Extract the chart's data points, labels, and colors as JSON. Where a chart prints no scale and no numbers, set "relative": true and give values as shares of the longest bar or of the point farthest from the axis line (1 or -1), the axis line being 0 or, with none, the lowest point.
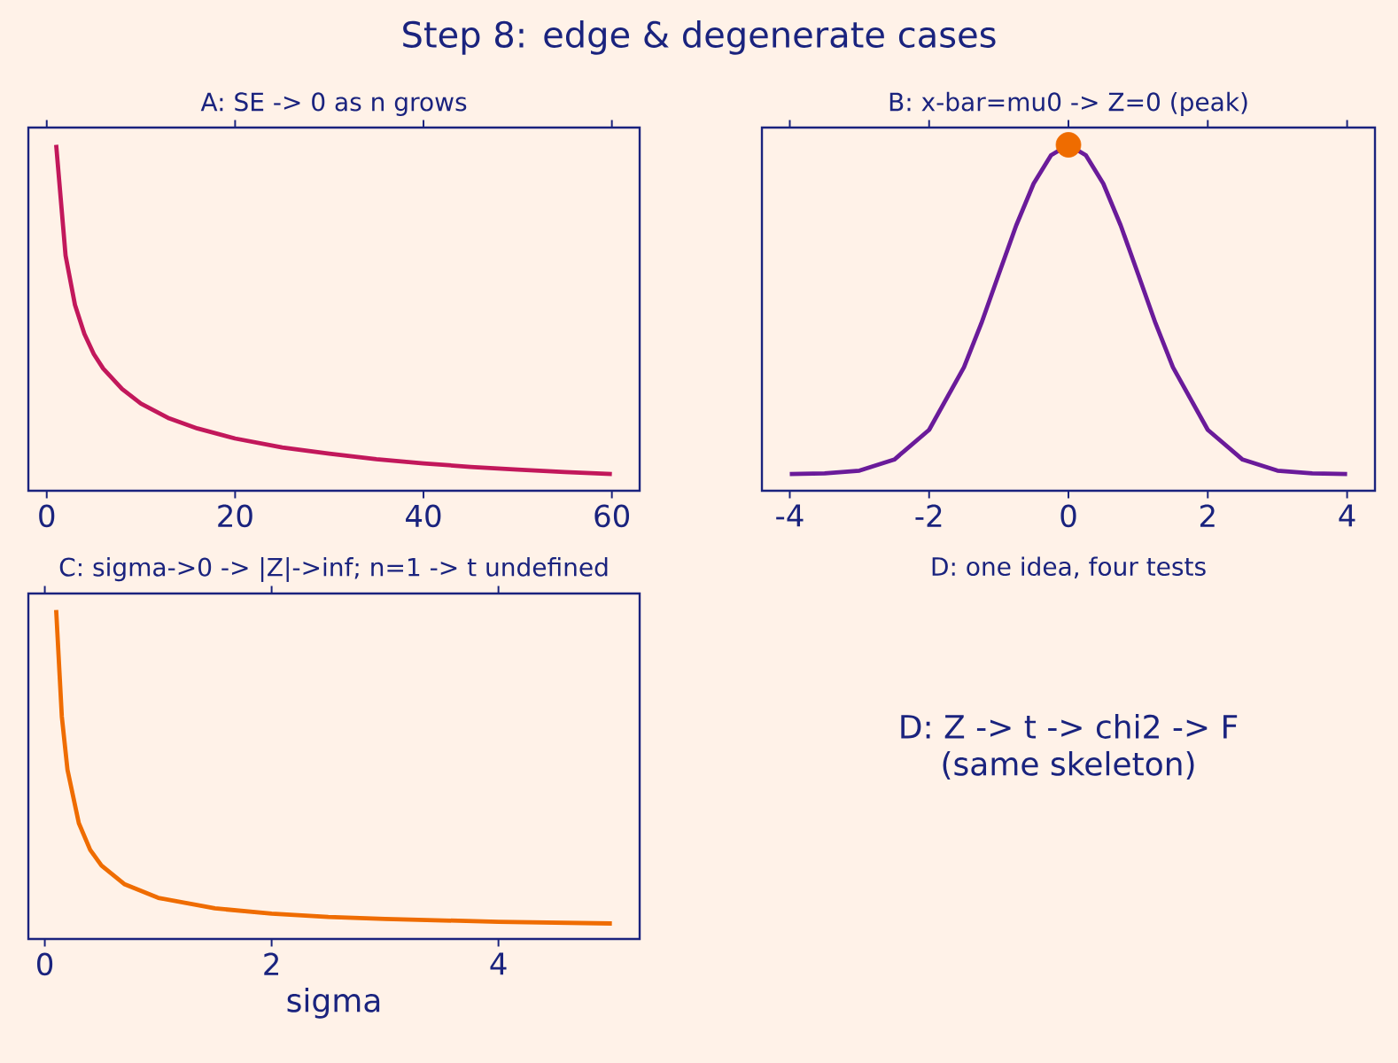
{
  "chart_data": [
    {
      "type": "line",
      "title": "Step 8: edge & degenerate cases",
      "subtitle": "A: SE -> 0 as n grows",
      "relative": true,
      "tick_labels": "x",
      "xlim": [
        -1.95,
        62.95
      ],
      "xticks": [
        0,
        20,
        40,
        60
      ],
      "x": [
        1,
        2,
        3,
        4,
        5,
        6,
        8,
        10,
        13,
        16,
        20,
        25,
        30,
        35,
        40,
        45,
        50,
        55,
        60
      ],
      "series": [
        {
          "color": "#c2185b",
          "values": [
            1,
            0.68,
            0.537,
            0.453,
            0.395,
            0.353,
            0.294,
            0.252,
            0.209,
            0.18,
            0.151,
            0.125,
            0.107,
            0.091,
            0.079,
            0.069,
            0.061,
            0.054,
            0.048
          ]
        }
      ]
    },
    {
      "type": "line",
      "title": "B: x-bar=mu0 -> Z=0 (peak)",
      "relative": true,
      "tick_labels": "x",
      "xlim": [
        -4.4,
        4.4
      ],
      "xticks": [
        -4,
        -2,
        0,
        2,
        4
      ],
      "x": [
        -4,
        -3.5,
        -3,
        -2.5,
        -2,
        -1.5,
        -1.25,
        -1,
        -0.75,
        -0.5,
        -0.25,
        0,
        0.25,
        0.5,
        0.75,
        1,
        1.25,
        1.5,
        2,
        2.5,
        3,
        3.5,
        4
      ],
      "series": [
        {
          "color": "#6a1b9a",
          "values": [
            0.048,
            0.05,
            0.058,
            0.09,
            0.176,
            0.357,
            0.484,
            0.626,
            0.767,
            0.888,
            0.97,
            1,
            0.97,
            0.888,
            0.767,
            0.626,
            0.484,
            0.357,
            0.176,
            0.09,
            0.058,
            0.05,
            0.048
          ]
        },
        {
          "type": "scatter",
          "marker": "circle",
          "color": "#ef6c00",
          "x": [
            0
          ],
          "values": [
            1
          ]
        }
      ]
    },
    {
      "type": "line",
      "title": "C: sigma->0 -> |Z|->inf;  n=1 -> t undefined",
      "xlabel": "sigma",
      "relative": true,
      "tick_labels": "x",
      "xlim": [
        -0.145,
        5.245
      ],
      "xticks": [
        0,
        2,
        4
      ],
      "x": [
        0.1,
        0.15,
        0.2,
        0.3,
        0.4,
        0.5,
        0.7,
        1,
        1.5,
        2,
        2.5,
        3,
        4,
        5
      ],
      "series": [
        {
          "color": "#ef6c00",
          "values": [
            1,
            0.676,
            0.514,
            0.352,
            0.271,
            0.223,
            0.167,
            0.125,
            0.093,
            0.077,
            0.067,
            0.061,
            0.052,
            0.047
          ]
        }
      ]
    },
    {
      "type": "other",
      "title": "D: one idea, four tests",
      "annotations": [
        "D:  Z  ->  t  ->  chi2  ->  F",
        "(same skeleton)"
      ]
    }
  ]
}
